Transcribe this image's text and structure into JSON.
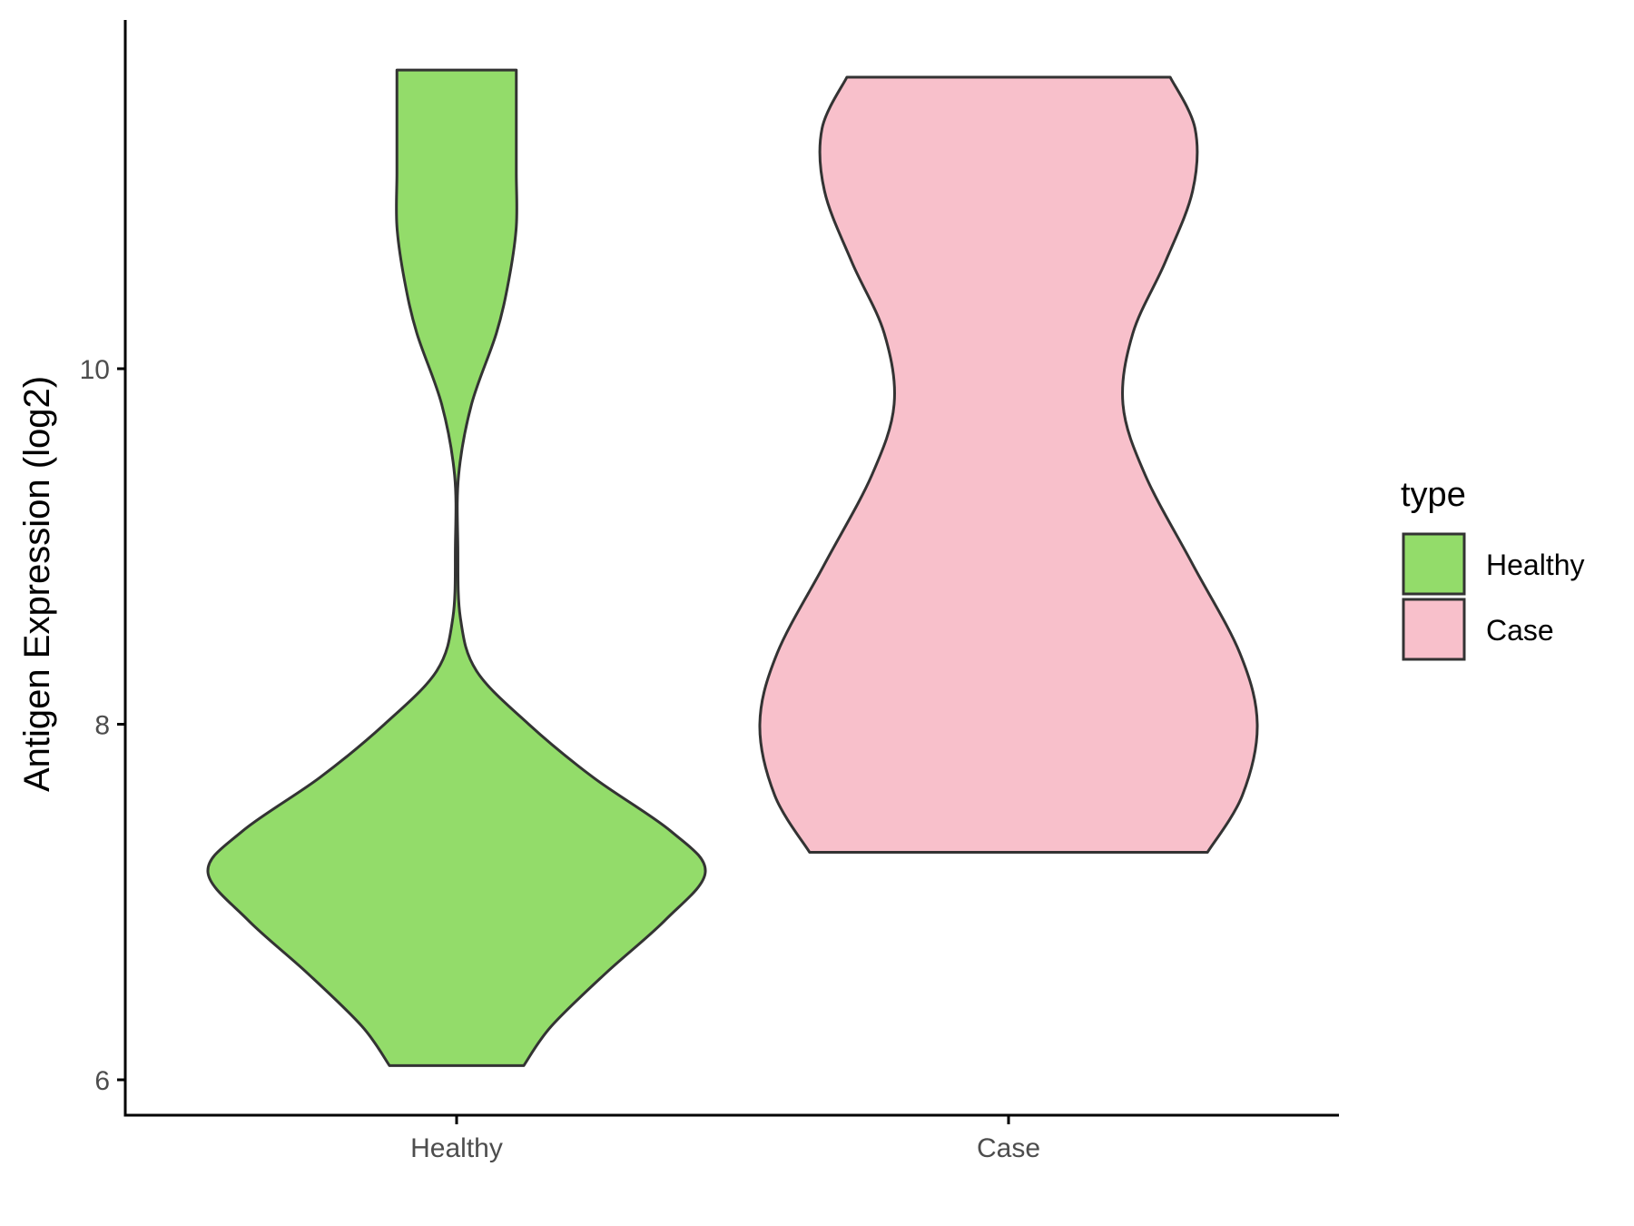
{
  "chart_data": {
    "type": "violin",
    "title": "",
    "xlabel": "",
    "ylabel": "Antigen Expression (log2)",
    "ylim": [
      5.8,
      12.0
    ],
    "yticks": [
      6,
      8,
      10
    ],
    "categories": [
      "Healthy",
      "Case"
    ],
    "grid": false,
    "legend": {
      "title": "type",
      "position": "right",
      "entries": [
        "Healthy",
        "Case"
      ]
    },
    "colors": {
      "Healthy": "#93dc6a",
      "Case": "#f8c0cb",
      "outline": "#333333",
      "axis": "#000000"
    },
    "series": [
      {
        "name": "Healthy",
        "min": 6.08,
        "max": 11.68,
        "density_profile": [
          [
            6.08,
            0.27
          ],
          [
            6.3,
            0.38
          ],
          [
            6.6,
            0.6
          ],
          [
            6.9,
            0.84
          ],
          [
            7.17,
            1.0
          ],
          [
            7.4,
            0.86
          ],
          [
            7.7,
            0.55
          ],
          [
            8.0,
            0.29
          ],
          [
            8.3,
            0.08
          ],
          [
            8.6,
            0.015
          ],
          [
            9.0,
            0.005
          ],
          [
            9.4,
            0.008
          ],
          [
            9.8,
            0.06
          ],
          [
            10.2,
            0.16
          ],
          [
            10.5,
            0.21
          ],
          [
            10.8,
            0.24
          ],
          [
            11.1,
            0.24
          ],
          [
            11.4,
            0.24
          ],
          [
            11.68,
            0.24
          ]
        ]
      },
      {
        "name": "Case",
        "min": 7.28,
        "max": 11.64,
        "density_profile": [
          [
            7.28,
            0.8
          ],
          [
            7.6,
            0.94
          ],
          [
            8.0,
            1.0
          ],
          [
            8.4,
            0.93
          ],
          [
            8.9,
            0.74
          ],
          [
            9.4,
            0.55
          ],
          [
            9.8,
            0.46
          ],
          [
            10.2,
            0.5
          ],
          [
            10.6,
            0.63
          ],
          [
            11.0,
            0.74
          ],
          [
            11.35,
            0.75
          ],
          [
            11.64,
            0.65
          ]
        ]
      }
    ]
  }
}
